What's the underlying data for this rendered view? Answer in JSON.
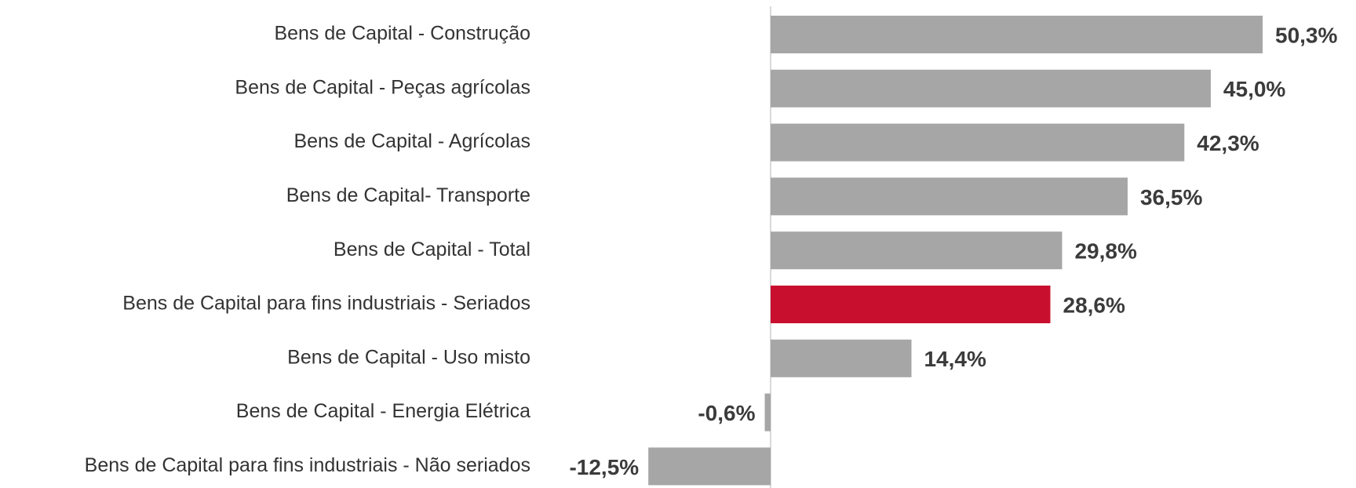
{
  "chart_data": {
    "type": "barh",
    "categories": [
      "Bens de Capital - Construção",
      "Bens de Capital - Peças agrícolas",
      "Bens de Capital - Agrícolas",
      "Bens de Capital- Transporte",
      "Bens de Capital - Total",
      "Bens de Capital para fins industriais - Seriados",
      "Bens de Capital - Uso misto",
      "Bens de Capital - Energia Elétrica",
      "Bens de Capital para fins industriais - Não seriados"
    ],
    "values": [
      50.3,
      45.0,
      42.3,
      36.5,
      29.8,
      28.6,
      14.4,
      -0.6,
      -12.5
    ],
    "value_labels": [
      "50,3%",
      "45,0%",
      "42,3%",
      "36,5%",
      "29,8%",
      "28,6%",
      "14,4%",
      "-0,6%",
      "-12,5%"
    ],
    "colors": [
      "#a6a6a6",
      "#a6a6a6",
      "#a6a6a6",
      "#a6a6a6",
      "#a6a6a6",
      "#c8102e",
      "#a6a6a6",
      "#a6a6a6",
      "#a6a6a6"
    ]
  }
}
